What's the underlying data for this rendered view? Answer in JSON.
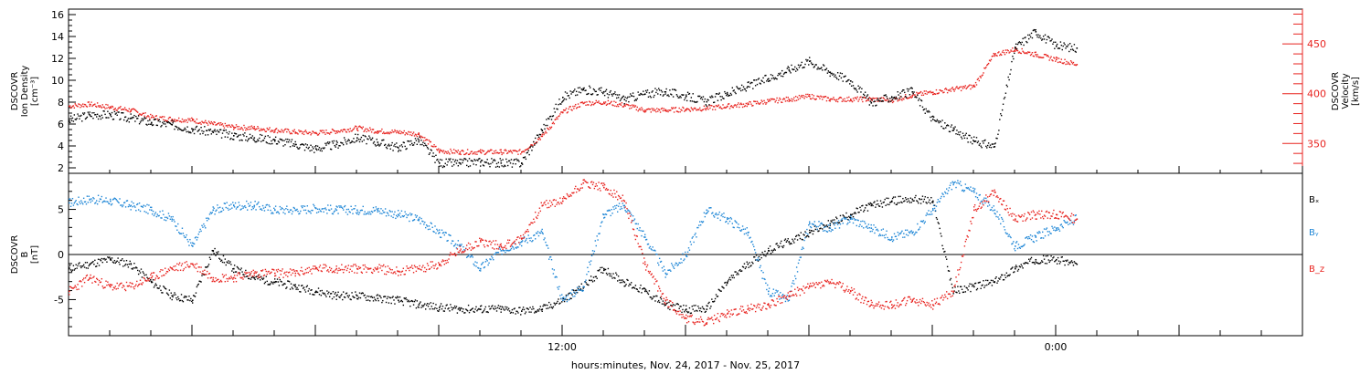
{
  "chart_data": [
    {
      "type": "scatter",
      "panel": "ion-density-velocity",
      "ylabel_left": [
        "DSCOVR",
        "Ion Density",
        "[cm⁻³]"
      ],
      "ylabel_right": [
        "DSCOVR",
        "Velocity",
        "[km/s]"
      ],
      "y_ticks_left": [
        2,
        4,
        6,
        8,
        10,
        12,
        14,
        16
      ],
      "y_ticks_right": [
        350,
        400,
        450
      ],
      "ylim_left": [
        1.5,
        16.5
      ],
      "ylim_right": [
        320,
        485
      ],
      "xlim": [
        "2017-11-24 00:00",
        "2017-11-25 06:00"
      ],
      "series": [
        {
          "axis": "left",
          "color": "#000000",
          "x": [
            "00:00",
            "00:30",
            "01:00",
            "01:30",
            "02:00",
            "02:30",
            "03:00",
            "03:30",
            "04:00",
            "04:30",
            "05:00",
            "05:30",
            "06:00",
            "06:30",
            "07:00",
            "07:30",
            "08:00",
            "08:30",
            "09:00",
            "09:30",
            "10:00",
            "10:30",
            "11:00",
            "11:30",
            "12:00",
            "12:30",
            "13:00",
            "13:30",
            "14:00",
            "14:30",
            "15:00",
            "15:30",
            "16:00",
            "16:30",
            "17:00",
            "17:30",
            "18:00",
            "18:30",
            "19:00",
            "19:30",
            "20:00",
            "20:30",
            "21:00",
            "21:30",
            "22:00",
            "22:30",
            "23:00",
            "23:30",
            "00:00+1",
            "00:30+1"
          ],
          "y": [
            6.4,
            6.9,
            6.9,
            6.6,
            6.2,
            6.0,
            5.6,
            5.3,
            5.0,
            4.8,
            4.6,
            4.2,
            3.8,
            4.2,
            4.8,
            4.4,
            3.9,
            4.6,
            2.5,
            2.5,
            2.6,
            2.5,
            2.5,
            5.5,
            8.5,
            9.2,
            9.0,
            8.3,
            8.8,
            9.0,
            8.6,
            8.1,
            8.8,
            9.5,
            10.2,
            11.0,
            11.8,
            10.8,
            10.0,
            8.0,
            8.5,
            9.0,
            6.5,
            5.5,
            4.5,
            4.0,
            13.0,
            14.5,
            13.2,
            13.0
          ]
        },
        {
          "axis": "right",
          "color": "#e8231f",
          "x": [
            "00:00",
            "00:30",
            "01:00",
            "01:30",
            "02:00",
            "02:30",
            "03:00",
            "03:30",
            "04:00",
            "04:30",
            "05:00",
            "05:30",
            "06:00",
            "06:30",
            "07:00",
            "07:30",
            "08:00",
            "08:30",
            "09:00",
            "09:30",
            "10:00",
            "10:30",
            "11:00",
            "11:30",
            "12:00",
            "12:30",
            "13:00",
            "13:30",
            "14:00",
            "14:30",
            "15:00",
            "15:30",
            "16:00",
            "16:30",
            "17:00",
            "17:30",
            "18:00",
            "18:30",
            "19:00",
            "19:30",
            "20:00",
            "20:30",
            "21:00",
            "21:30",
            "22:00",
            "22:30",
            "23:00",
            "23:30",
            "00:00+1",
            "00:30+1"
          ],
          "y": [
            388,
            390,
            387,
            384,
            377,
            375,
            374,
            370,
            367,
            366,
            364,
            362,
            361,
            363,
            366,
            363,
            362,
            360,
            343,
            342,
            342,
            342,
            342,
            358,
            382,
            391,
            392,
            389,
            384,
            384,
            385,
            386,
            388,
            390,
            393,
            395,
            398,
            395,
            395,
            395,
            394,
            399,
            402,
            405,
            408,
            440,
            445,
            440,
            435,
            430
          ]
        }
      ]
    },
    {
      "type": "scatter",
      "panel": "magnetic-field",
      "ylabel_left": [
        "DSCOVR",
        "B",
        "[nT]"
      ],
      "y_ticks_left": [
        -5,
        0,
        5
      ],
      "ylim_left": [
        -9,
        9
      ],
      "x_ticks": [
        "12:00",
        "0:00"
      ],
      "xlabel": "hours:minutes, Nov. 24, 2017 - Nov. 25, 2017",
      "legend": [
        "Bₓ",
        "Bᵧ",
        "B_z"
      ],
      "legend_placement": "right",
      "series": [
        {
          "name": "Bₓ",
          "color": "#000000",
          "x": [
            "00:00",
            "00:30",
            "01:00",
            "01:30",
            "02:00",
            "02:30",
            "03:00",
            "03:30",
            "04:00",
            "04:30",
            "05:00",
            "05:30",
            "06:00",
            "06:30",
            "07:00",
            "07:30",
            "08:00",
            "08:30",
            "09:00",
            "09:30",
            "10:00",
            "10:30",
            "11:00",
            "11:30",
            "12:00",
            "12:30",
            "13:00",
            "13:30",
            "14:00",
            "14:30",
            "15:00",
            "15:30",
            "16:00",
            "16:30",
            "17:00",
            "17:30",
            "18:00",
            "18:30",
            "19:00",
            "19:30",
            "20:00",
            "20:30",
            "21:00",
            "21:30",
            "22:00",
            "22:30",
            "23:00",
            "23:30",
            "00:00+1",
            "00:30+1"
          ],
          "y": [
            -1.5,
            -1.0,
            -0.5,
            -1.0,
            -3.0,
            -4.5,
            -5.0,
            0.5,
            -1.5,
            -2.5,
            -3.0,
            -3.5,
            -4.0,
            -4.5,
            -4.5,
            -4.8,
            -5.0,
            -5.5,
            -5.8,
            -6.0,
            -6.0,
            -6.0,
            -6.2,
            -6.0,
            -5.0,
            -3.5,
            -1.5,
            -3.0,
            -4.0,
            -5.5,
            -6.0,
            -6.0,
            -3.0,
            -1.0,
            0.5,
            1.5,
            2.5,
            3.5,
            4.5,
            5.5,
            6.0,
            6.2,
            6.0,
            -4.0,
            -3.5,
            -3.0,
            -1.5,
            -0.5,
            -0.5,
            -1.0
          ]
        },
        {
          "name": "Bᵧ",
          "color": "#1e86d6",
          "x": [
            "00:00",
            "00:30",
            "01:00",
            "01:30",
            "02:00",
            "02:30",
            "03:00",
            "03:30",
            "04:00",
            "04:30",
            "05:00",
            "05:30",
            "06:00",
            "06:30",
            "07:00",
            "07:30",
            "08:00",
            "08:30",
            "09:00",
            "09:30",
            "10:00",
            "10:30",
            "11:00",
            "11:30",
            "12:00",
            "12:30",
            "13:00",
            "13:30",
            "14:00",
            "14:30",
            "15:00",
            "15:30",
            "16:00",
            "16:30",
            "17:00",
            "17:30",
            "18:00",
            "18:30",
            "19:00",
            "19:30",
            "20:00",
            "20:30",
            "21:00",
            "21:30",
            "22:00",
            "22:30",
            "23:00",
            "23:30",
            "00:00+1",
            "00:30+1"
          ],
          "y": [
            5.8,
            6.2,
            6.0,
            5.5,
            5.0,
            4.0,
            1.0,
            5.0,
            5.5,
            5.5,
            5.0,
            5.0,
            5.2,
            5.0,
            5.0,
            5.0,
            4.5,
            4.0,
            2.5,
            1.0,
            -1.5,
            0.5,
            1.5,
            2.5,
            -5.0,
            -3.5,
            4.5,
            5.5,
            2.0,
            -2.0,
            0.0,
            5.0,
            4.0,
            2.5,
            -4.0,
            -5.0,
            3.5,
            3.0,
            4.0,
            3.0,
            2.0,
            2.5,
            5.0,
            8.0,
            7.0,
            5.0,
            1.0,
            2.0,
            3.0,
            4.0
          ]
        },
        {
          "name": "B_z",
          "color": "#e8231f",
          "x": [
            "00:00",
            "00:30",
            "01:00",
            "01:30",
            "02:00",
            "02:30",
            "03:00",
            "03:30",
            "04:00",
            "04:30",
            "05:00",
            "05:30",
            "06:00",
            "06:30",
            "07:00",
            "07:30",
            "08:00",
            "08:30",
            "09:00",
            "09:30",
            "10:00",
            "10:30",
            "11:00",
            "11:30",
            "12:00",
            "12:30",
            "13:00",
            "13:30",
            "14:00",
            "14:30",
            "15:00",
            "15:30",
            "16:00",
            "16:30",
            "17:00",
            "17:30",
            "18:00",
            "18:30",
            "19:00",
            "19:30",
            "20:00",
            "20:30",
            "21:00",
            "21:30",
            "22:00",
            "22:30",
            "23:00",
            "23:30",
            "00:00+1",
            "00:30+1"
          ],
          "y": [
            -4.0,
            -2.5,
            -3.5,
            -3.5,
            -2.5,
            -1.5,
            -1.0,
            -2.5,
            -2.5,
            -2.0,
            -2.0,
            -2.0,
            -1.5,
            -1.5,
            -1.5,
            -1.5,
            -1.8,
            -1.5,
            -1.0,
            0.5,
            1.5,
            1.0,
            1.8,
            5.5,
            6.0,
            8.0,
            7.5,
            6.0,
            -1.0,
            -5.0,
            -7.0,
            -7.5,
            -6.5,
            -6.0,
            -5.5,
            -4.5,
            -3.5,
            -3.0,
            -4.0,
            -5.5,
            -5.5,
            -5.0,
            -5.5,
            -4.0,
            5.0,
            7.0,
            4.0,
            4.5,
            4.5,
            4.0
          ]
        }
      ]
    }
  ]
}
